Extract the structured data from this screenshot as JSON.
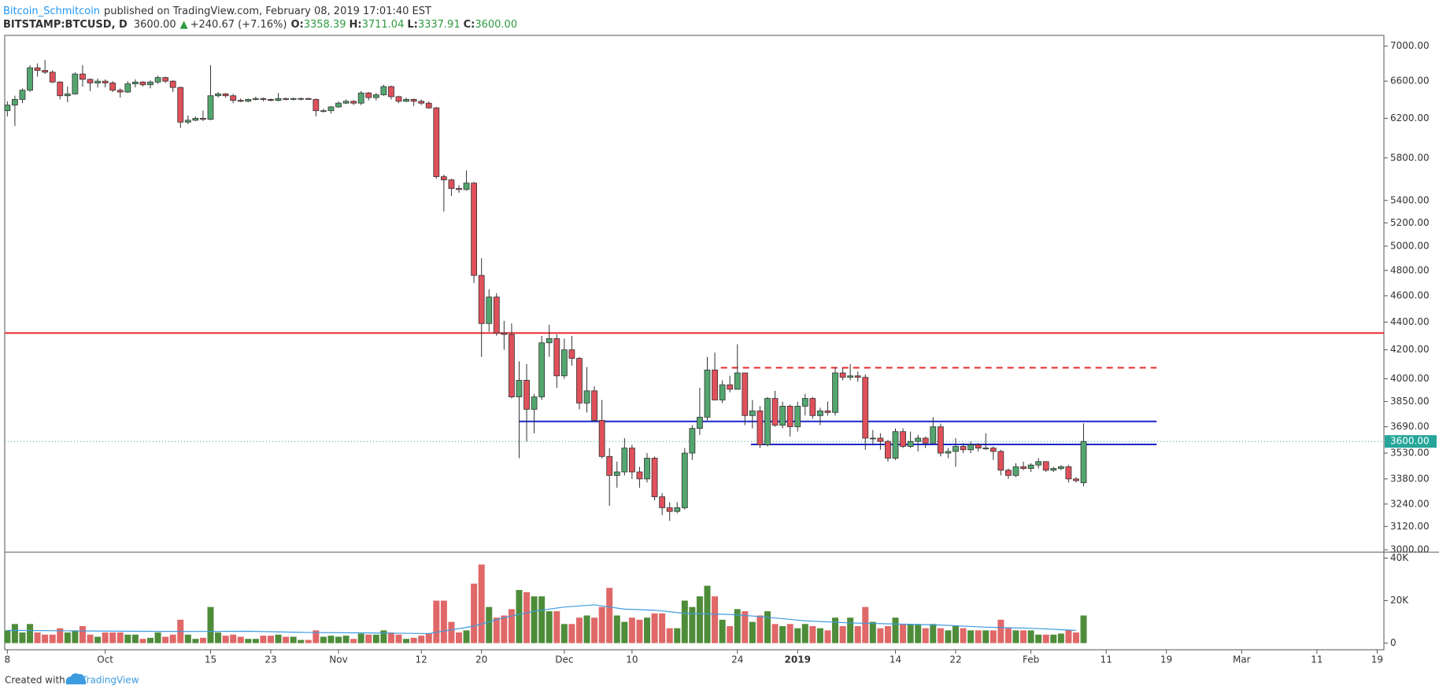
{
  "header": {
    "author": "Bitcoin_Schmitcoin",
    "published": "published on TradingView.com, February 08, 2019 17:01:40 EST",
    "symbol": "BITSTAMP:BTCUSD, D",
    "last": "3600.00",
    "arrow": "▲",
    "change": "+240.67 (+7.16%)",
    "o_label": "O:",
    "o": "3358.39",
    "h_label": "H:",
    "h": "3711.04",
    "l_label": "L:",
    "l": "3337.91",
    "c_label": "C:",
    "c": "3600.00"
  },
  "footer": {
    "created": "Created with",
    "brand": "TradingView"
  },
  "chart_data": [
    {
      "type": "candlestick",
      "log": true,
      "up_color": "#53a66f",
      "down_color": "#e0505b",
      "open": [
        6280,
        6340,
        6400,
        6500,
        6750,
        6720,
        6700,
        6590,
        6440,
        6460,
        6680,
        6620,
        6580,
        6600,
        6580,
        6500,
        6480,
        6570,
        6590,
        6560,
        6590,
        6640,
        6600,
        6530,
        6160,
        6180,
        6200,
        6190,
        6440,
        6460,
        6440,
        6390,
        6380,
        6400,
        6410,
        6400,
        6390,
        6410,
        6400,
        6410,
        6410,
        6400,
        6280,
        6280,
        6320,
        6360,
        6380,
        6360,
        6470,
        6420,
        6450,
        6540,
        6430,
        6380,
        6400,
        6380,
        6360,
        6310,
        5620,
        5590,
        5510,
        5500,
        5560,
        4760,
        4390,
        4590,
        4320,
        4310,
        3880,
        3990,
        3800,
        3880,
        4250,
        4280,
        4020,
        4200,
        4140,
        3840,
        3920,
        3730,
        3510,
        3400,
        3420,
        3560,
        3420,
        3380,
        3500,
        3280,
        3220,
        3200,
        3220,
        3530,
        3680,
        3750,
        4060,
        3860,
        3960,
        3930,
        4040,
        3760,
        3790,
        3580,
        3870,
        3700,
        3820,
        3690,
        3820,
        3870,
        3760,
        3790,
        3780,
        4040,
        4010,
        4020,
        4010,
        3620,
        3620,
        3600,
        3500,
        3660,
        3570,
        3600,
        3620,
        3590,
        3690,
        3530,
        3540,
        3570,
        3550,
        3580,
        3560,
        3560,
        3540,
        3430,
        3400,
        3450,
        3440,
        3460,
        3480,
        3430,
        3440,
        3450,
        3380,
        3358.39
      ],
      "high": [
        6380,
        6440,
        6520,
        6780,
        6800,
        6840,
        6720,
        6600,
        6540,
        6700,
        6780,
        6630,
        6630,
        6620,
        6600,
        6520,
        6600,
        6620,
        6600,
        6610,
        6660,
        6650,
        6610,
        6540,
        6230,
        6220,
        6280,
        6780,
        6480,
        6470,
        6460,
        6410,
        6410,
        6430,
        6420,
        6410,
        6470,
        6420,
        6420,
        6420,
        6420,
        6410,
        6300,
        6330,
        6380,
        6400,
        6390,
        6490,
        6480,
        6470,
        6560,
        6550,
        6440,
        6420,
        6410,
        6400,
        6380,
        6320,
        5640,
        5600,
        5540,
        5680,
        5570,
        4900,
        4650,
        4620,
        4410,
        4390,
        4120,
        4100,
        3900,
        4300,
        4380,
        4310,
        4280,
        4300,
        4150,
        4080,
        3950,
        3860,
        3560,
        3480,
        3620,
        3580,
        3450,
        3530,
        3510,
        3300,
        3250,
        3250,
        3560,
        3700,
        3940,
        4150,
        4180,
        3990,
        4020,
        4240,
        4040,
        3860,
        3820,
        3880,
        3920,
        3850,
        3830,
        3850,
        3900,
        3880,
        3810,
        3850,
        4080,
        4070,
        4100,
        4050,
        4030,
        3670,
        3650,
        3610,
        3680,
        3680,
        3660,
        3640,
        3630,
        3750,
        3710,
        3560,
        3620,
        3590,
        3600,
        3590,
        3650,
        3570,
        3550,
        3440,
        3470,
        3480,
        3470,
        3500,
        3480,
        3450,
        3460,
        3460,
        3390,
        3711.04
      ],
      "low": [
        6220,
        6120,
        6360,
        6480,
        6650,
        6680,
        6580,
        6400,
        6370,
        6450,
        6540,
        6490,
        6530,
        6530,
        6480,
        6420,
        6470,
        6530,
        6540,
        6520,
        6570,
        6580,
        6480,
        6100,
        6140,
        6170,
        6170,
        6180,
        6420,
        6420,
        6360,
        6370,
        6370,
        6390,
        6380,
        6380,
        6380,
        6390,
        6390,
        6390,
        6400,
        6220,
        6260,
        6250,
        6310,
        6350,
        6340,
        6340,
        6390,
        6390,
        6440,
        6400,
        6360,
        6370,
        6330,
        6340,
        6300,
        5600,
        5300,
        5440,
        5470,
        5490,
        4700,
        4150,
        4330,
        4300,
        4200,
        3870,
        3500,
        3600,
        3650,
        3860,
        4150,
        3940,
        4000,
        4090,
        3800,
        3780,
        3720,
        3500,
        3230,
        3330,
        3400,
        3380,
        3330,
        3360,
        3260,
        3180,
        3150,
        3190,
        3210,
        3490,
        3640,
        3730,
        3860,
        3840,
        3910,
        3930,
        3700,
        3680,
        3560,
        3570,
        3690,
        3680,
        3630,
        3660,
        3760,
        3740,
        3700,
        3760,
        3760,
        3990,
        3990,
        3980,
        3550,
        3580,
        3550,
        3480,
        3490,
        3560,
        3560,
        3540,
        3560,
        3590,
        3510,
        3500,
        3450,
        3530,
        3530,
        3540,
        3550,
        3490,
        3400,
        3380,
        3390,
        3430,
        3420,
        3440,
        3420,
        3420,
        3430,
        3360,
        3360,
        3337.91
      ],
      "close": [
        6340,
        6400,
        6500,
        6750,
        6720,
        6700,
        6590,
        6440,
        6460,
        6680,
        6620,
        6580,
        6600,
        6580,
        6500,
        6480,
        6570,
        6590,
        6560,
        6590,
        6640,
        6600,
        6530,
        6160,
        6180,
        6200,
        6190,
        6440,
        6460,
        6440,
        6390,
        6380,
        6400,
        6410,
        6400,
        6390,
        6410,
        6400,
        6410,
        6410,
        6400,
        6280,
        6280,
        6320,
        6360,
        6380,
        6360,
        6470,
        6420,
        6450,
        6540,
        6430,
        6380,
        6400,
        6380,
        6360,
        6310,
        5620,
        5590,
        5510,
        5500,
        5560,
        4760,
        4390,
        4590,
        4320,
        4310,
        3880,
        3990,
        3800,
        3880,
        4250,
        4280,
        4020,
        4200,
        4140,
        3840,
        3920,
        3730,
        3510,
        3400,
        3420,
        3560,
        3420,
        3380,
        3500,
        3280,
        3220,
        3200,
        3220,
        3530,
        3680,
        3750,
        4060,
        3860,
        3960,
        3930,
        4040,
        3760,
        3790,
        3580,
        3870,
        3700,
        3820,
        3690,
        3820,
        3870,
        3760,
        3790,
        3780,
        4040,
        4010,
        4020,
        4010,
        3620,
        3620,
        3600,
        3500,
        3660,
        3570,
        3600,
        3620,
        3590,
        3690,
        3530,
        3540,
        3570,
        3550,
        3580,
        3560,
        3560,
        3540,
        3430,
        3400,
        3450,
        3440,
        3460,
        3480,
        3430,
        3440,
        3450,
        3380,
        3370,
        3600
      ],
      "xlim": [
        -0.35,
        182.9
      ],
      "xticks": [
        {
          "value": 0,
          "label": "8"
        },
        {
          "value": 13,
          "label": "Oct"
        },
        {
          "value": 27,
          "label": "15"
        },
        {
          "value": 35,
          "label": "23"
        },
        {
          "value": 44,
          "label": "Nov"
        },
        {
          "value": 55,
          "label": "12"
        },
        {
          "value": 63,
          "label": "20"
        },
        {
          "value": 74,
          "label": "Dec"
        },
        {
          "value": 83,
          "label": "10"
        },
        {
          "value": 97,
          "label": "24"
        },
        {
          "value": 105,
          "label": "2019"
        },
        {
          "value": 118,
          "label": "14"
        },
        {
          "value": 126,
          "label": "22"
        },
        {
          "value": 136,
          "label": "Feb"
        },
        {
          "value": 146,
          "label": "11"
        },
        {
          "value": 154,
          "label": "19"
        },
        {
          "value": 164,
          "label": "Mar"
        },
        {
          "value": 174,
          "label": "11"
        },
        {
          "value": 182,
          "label": "19"
        }
      ],
      "ylim": [
        2988,
        7128
      ],
      "yticks": [
        {
          "value": 7000,
          "label": "7000.00"
        },
        {
          "value": 6600,
          "label": "6600.00"
        },
        {
          "value": 6200,
          "label": "6200.00"
        },
        {
          "value": 5800,
          "label": "5800.00"
        },
        {
          "value": 5400,
          "label": "5400.00"
        },
        {
          "value": 5200,
          "label": "5200.00"
        },
        {
          "value": 5000,
          "label": "5000.00"
        },
        {
          "value": 4800,
          "label": "4800.00"
        },
        {
          "value": 4600,
          "label": "4600.00"
        },
        {
          "value": 4400,
          "label": "4400.00"
        },
        {
          "value": 4200,
          "label": "4200.00"
        },
        {
          "value": 4000,
          "label": "4000.00"
        },
        {
          "value": 3850,
          "label": "3850.00"
        },
        {
          "value": 3690,
          "label": "3690.00"
        },
        {
          "value": 3530,
          "label": "3530.00"
        },
        {
          "value": 3380,
          "label": "3380.00"
        },
        {
          "value": 3240,
          "label": "3240.00"
        },
        {
          "value": 3120,
          "label": "3120.00"
        },
        {
          "value": 3000,
          "label": "3000.00"
        }
      ],
      "hlines": [
        {
          "value": 4320,
          "color": "#e8282a",
          "style": "solid"
        },
        {
          "value": 4075,
          "color": "#e8282a",
          "style": "dashed",
          "from": 94.8,
          "to": 152.7
        },
        {
          "value": 3723,
          "color": "#1b25c8",
          "style": "solid",
          "from": 68,
          "to": 152.7
        },
        {
          "value": 3582,
          "color": "#1b25c8",
          "style": "solid",
          "from": 98.8,
          "to": 152.7
        }
      ],
      "last_price": {
        "value": 3600,
        "label": "3600.00",
        "color": "#26a69a"
      }
    },
    {
      "type": "bar",
      "up_color": "#4e8c3a",
      "down_color": "#e06868",
      "values": [
        6000,
        9000,
        5000,
        9000,
        5000,
        4000,
        4000,
        7000,
        5000,
        6000,
        8000,
        4000,
        3000,
        5000,
        5000,
        5000,
        4000,
        4000,
        2000,
        2500,
        5000,
        3000,
        4000,
        11000,
        4000,
        2000,
        2500,
        17000,
        5000,
        3500,
        4000,
        3000,
        2000,
        2000,
        3500,
        3500,
        4000,
        3000,
        3000,
        1500,
        1500,
        6000,
        3000,
        3500,
        3000,
        3500,
        2000,
        4500,
        4000,
        4000,
        6000,
        5000,
        4000,
        2000,
        2500,
        3500,
        4500,
        20000,
        20000,
        10000,
        5000,
        6000,
        28000,
        37000,
        17000,
        12000,
        13000,
        16000,
        25000,
        24000,
        22000,
        22000,
        15000,
        15000,
        9000,
        9000,
        12000,
        13000,
        12000,
        17000,
        26000,
        13000,
        10000,
        12000,
        11000,
        12000,
        14000,
        14000,
        7000,
        7000,
        20000,
        17000,
        22000,
        27000,
        22000,
        11000,
        8000,
        16000,
        15000,
        10000,
        13000,
        15000,
        9000,
        8000,
        9000,
        7000,
        9000,
        8000,
        7000,
        6000,
        12000,
        8000,
        12000,
        8000,
        17000,
        10000,
        7000,
        8000,
        12000,
        9000,
        9000,
        9000,
        7000,
        9000,
        7000,
        6000,
        8000,
        7000,
        6000,
        6000,
        6000,
        6000,
        11000,
        7000,
        6000,
        6000,
        6000,
        4000,
        4000,
        4000,
        4500,
        6000,
        5000,
        13000
      ],
      "ylim": [
        -3110,
        42780
      ],
      "yticks": [
        {
          "value": 40000,
          "label": "40K"
        },
        {
          "value": 20000,
          "label": "20K"
        },
        0
      ],
      "ma": {
        "color": "#3d9be0",
        "x": [
          0,
          8,
          16,
          24,
          32,
          40,
          48,
          56,
          62,
          66,
          70,
          74,
          78,
          82,
          86,
          90,
          96,
          100,
          106,
          112,
          118,
          124,
          130,
          136,
          142
        ],
        "values": [
          6000,
          5800,
          5600,
          5500,
          5600,
          5000,
          4800,
          4500,
          8000,
          12000,
          15000,
          17000,
          18000,
          16000,
          15500,
          14000,
          13500,
          12500,
          10500,
          9500,
          9000,
          8500,
          7500,
          7000,
          6000
        ]
      }
    }
  ]
}
